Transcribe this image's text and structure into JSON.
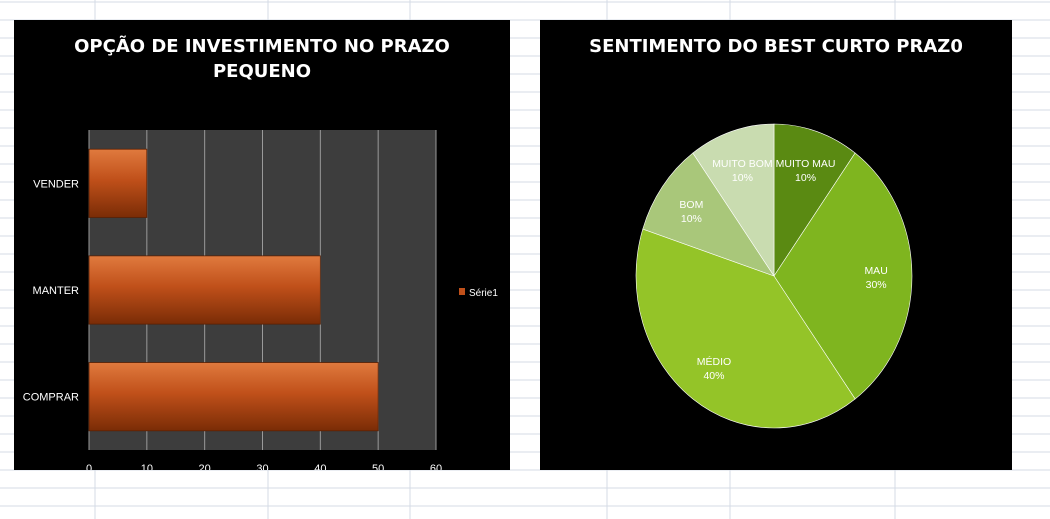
{
  "chart_data": [
    {
      "type": "bar",
      "orientation": "horizontal",
      "title": "OPÇÃO DE INVESTIMENTO NO PRAZO\nPEQUENO",
      "categories": [
        "VENDER",
        "MANTER",
        "COMPRAR"
      ],
      "series": [
        {
          "name": "Série1",
          "values": [
            10,
            40,
            50
          ],
          "color": "#c0501a"
        }
      ],
      "xlim": [
        0,
        60
      ],
      "xticks": [
        0,
        10,
        20,
        30,
        40,
        50,
        60
      ],
      "grid": true,
      "legend": "right",
      "plot_background": "#3d3d3d"
    },
    {
      "type": "pie",
      "title": "SENTIMENTO DO BEST  CURTO PRAZ0",
      "slices": [
        {
          "label": "MUITO MAU",
          "value": 10,
          "display": "10%",
          "color": "#5a8a12"
        },
        {
          "label": "MAU",
          "value": 30,
          "display": "30%",
          "color": "#7fb51f"
        },
        {
          "label": "MÉDIO",
          "value": 40,
          "display": "40%",
          "color": "#94c428"
        },
        {
          "label": "BOM",
          "value": 10,
          "display": "10%",
          "color": "#a9c77a"
        },
        {
          "label": "MUITO BOM",
          "value": 10,
          "display": "10%",
          "color": "#c9dcb0"
        }
      ]
    }
  ]
}
